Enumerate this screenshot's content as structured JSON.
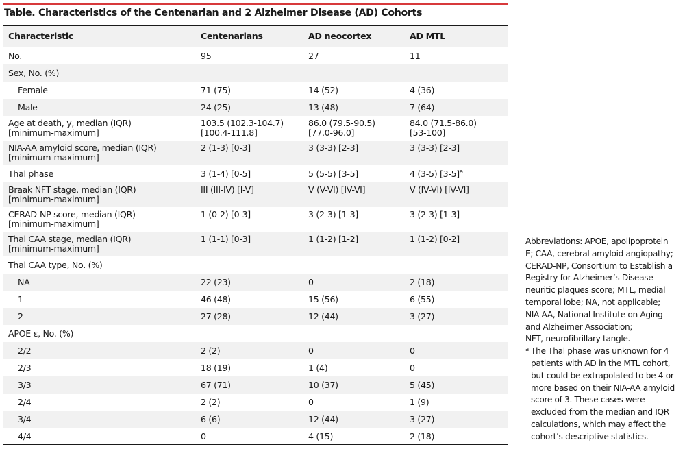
{
  "title": "Table. Characteristics of the Centenarian and 2 Alzheimer Disease (AD) Cohorts",
  "columns": [
    "Characteristic",
    "Centenarians",
    "AD neocortex",
    "AD MTL"
  ],
  "rows": [
    {
      "label": [
        "No."
      ],
      "values": [
        [
          "95"
        ],
        [
          "27"
        ],
        [
          "11"
        ]
      ]
    },
    {
      "label": [
        "Sex, No. (%)"
      ],
      "values": [
        [
          ""
        ],
        [
          ""
        ],
        [
          ""
        ]
      ]
    },
    {
      "label": [
        "Female"
      ],
      "values": [
        [
          "71 (75)"
        ],
        [
          "14 (52)"
        ],
        [
          "4 (36)"
        ]
      ]
    },
    {
      "label": [
        "Male"
      ],
      "values": [
        [
          "24 (25)"
        ],
        [
          "13 (48)"
        ],
        [
          "7 (64)"
        ]
      ]
    },
    {
      "label": [
        "Age at death, y, median (IQR)",
        "[minimum-maximum]"
      ],
      "values": [
        [
          "103.5 (102.3-104.7)",
          "[100.4-111.8]"
        ],
        [
          "86.0 (79.5-90.5)",
          "[77.0-96.0]"
        ],
        [
          "84.0 (71.5-86.0)",
          "[53-100]"
        ]
      ]
    },
    {
      "label": [
        "NIA-AA amyloid score, median (IQR)",
        "[minimum-maximum]"
      ],
      "values": [
        [
          "2 (1-3) [0-3]"
        ],
        [
          "3 (3-3) [2-3]"
        ],
        [
          "3 (3-3) [2-3]"
        ]
      ]
    },
    {
      "label": [
        "Thal phase"
      ],
      "values": [
        [
          "3 (1-4) [0-5]"
        ],
        [
          "5 (5-5) [3-5]"
        ],
        [
          "4 (3-5) [3-5]"
        ]
      ],
      "footnote_mark": "a"
    },
    {
      "label": [
        "Braak NFT stage, median (IQR)",
        "[minimum-maximum]"
      ],
      "values": [
        [
          "III (III-IV) [I-V]"
        ],
        [
          "V (V-VI) [IV-VI]"
        ],
        [
          "V (IV-VI) [IV-VI]"
        ]
      ]
    },
    {
      "label": [
        "CERAD-NP score, median (IQR)",
        "[minimum-maximum]"
      ],
      "values": [
        [
          "1 (0-2) [0-3]"
        ],
        [
          "3 (2-3) [1-3]"
        ],
        [
          "3 (2-3) [1-3]"
        ]
      ]
    },
    {
      "label": [
        "Thal CAA stage, median (IQR)",
        "[minimum-maximum]"
      ],
      "values": [
        [
          "1 (1-1) [0-3]"
        ],
        [
          "1 (1-2) [1-2]"
        ],
        [
          "1 (1-2) [0-2]"
        ]
      ]
    },
    {
      "label": [
        "Thal CAA type, No. (%)"
      ],
      "values": [
        [
          ""
        ],
        [
          ""
        ],
        [
          ""
        ]
      ]
    },
    {
      "label": [
        "NA"
      ],
      "values": [
        [
          "22 (23)"
        ],
        [
          "0"
        ],
        [
          "2 (18)"
        ]
      ]
    },
    {
      "label": [
        "1"
      ],
      "values": [
        [
          "46 (48)"
        ],
        [
          "15 (56)"
        ],
        [
          "6 (55)"
        ]
      ]
    },
    {
      "label": [
        "2"
      ],
      "values": [
        [
          "27 (28)"
        ],
        [
          "12 (44)"
        ],
        [
          "3 (27)"
        ]
      ]
    },
    {
      "label": [
        "APOE ε, No. (%)"
      ],
      "values": [
        [
          ""
        ],
        [
          ""
        ],
        [
          ""
        ]
      ]
    },
    {
      "label": [
        "2/2"
      ],
      "values": [
        [
          "2 (2)"
        ],
        [
          "0"
        ],
        [
          "0"
        ]
      ]
    },
    {
      "label": [
        "2/3"
      ],
      "values": [
        [
          "18 (19)"
        ],
        [
          "1 (4)"
        ],
        [
          "0"
        ]
      ]
    },
    {
      "label": [
        "3/3"
      ],
      "values": [
        [
          "67 (71)"
        ],
        [
          "10 (37)"
        ],
        [
          "5 (45)"
        ]
      ]
    },
    {
      "label": [
        "2/4"
      ],
      "values": [
        [
          "2 (2)"
        ],
        [
          "0"
        ],
        [
          "1 (9)"
        ]
      ]
    },
    {
      "label": [
        "3/4"
      ],
      "values": [
        [
          "6 (6)"
        ],
        [
          "12 (44)"
        ],
        [
          "3 (27)"
        ]
      ]
    },
    {
      "label": [
        "4/4"
      ],
      "values": [
        [
          "0"
        ],
        [
          "4 (15)"
        ],
        [
          "2 (18)"
        ]
      ]
    }
  ],
  "abbreviations": [
    "Abbreviations: APOE, apolipoprotein",
    "E; CAA, cerebral amyloid angiopathy;",
    "CERAD-NP, Consortium to Establish a",
    "Registry for Alzheimer’s Disease",
    "neuritic plaques score; MTL, medial",
    "temporal lobe; NA, not applicable;",
    "NIA-AA, National Institute on Aging",
    "and Alzheimer Association;",
    "NFT, neurofibrillary tangle."
  ],
  "footnote": {
    "mark": "a",
    "lines": [
      "The Thal phase was unknown for 4",
      "patients with AD in the MTL cohort,",
      "but could be extrapolated to be 4 or",
      "more based on their NIA-AA amyloid",
      "score of 3. These cases were",
      "excluded from the median and IQR",
      "calculations, which may affect the",
      "cohort’s descriptive statistics."
    ]
  },
  "colors": {
    "accent_rule": "#d7393b",
    "band": "#f1f1f1"
  }
}
